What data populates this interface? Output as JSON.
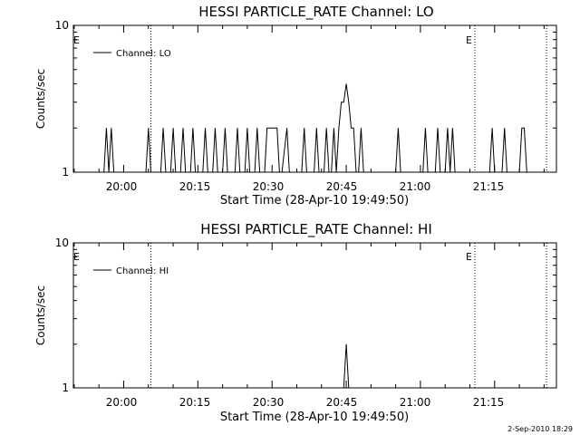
{
  "footer": {
    "date_stamp": "2-Sep-2010 18:29"
  },
  "chart_data": [
    {
      "type": "line",
      "title": "HESSI PARTICLE_RATE Channel: LO",
      "xlabel": "Start Time (28-Apr-10 19:49:50)",
      "ylabel": "Counts/sec",
      "y_scale": "log",
      "ylim": [
        1,
        10
      ],
      "yticks": [
        1,
        10
      ],
      "ytick_labels": [
        "1",
        "10"
      ],
      "xlim": [
        "19:49:50",
        "21:27:30"
      ],
      "xtick_labels": [
        "20:00",
        "20:15",
        "20:30",
        "20:45",
        "21:00",
        "21:15"
      ],
      "xtick_values": [
        "20:00",
        "20:15",
        "20:30",
        "20:45",
        "21:00",
        "21:15"
      ],
      "legend": {
        "entries": [
          "Channel: LO"
        ],
        "placement": "top-left"
      },
      "vlines": [
        {
          "x": "20:05:30",
          "label": ""
        },
        {
          "x": "21:11:00",
          "label": "E"
        },
        {
          "x": "21:25:30",
          "label": ""
        }
      ],
      "left_edge_label": "E",
      "series": [
        {
          "name": "Channel: LO",
          "x": [
            "19:56:00",
            "19:56:30",
            "19:57:00",
            "19:57:30",
            "19:58:00",
            "20:04:30",
            "20:05:00",
            "20:05:30",
            "20:07:30",
            "20:08:00",
            "20:08:30",
            "20:09:30",
            "20:10:00",
            "20:10:30",
            "20:11:30",
            "20:12:00",
            "20:12:30",
            "20:13:30",
            "20:14:00",
            "20:14:30",
            "20:16:00",
            "20:16:30",
            "20:17:00",
            "20:18:00",
            "20:18:30",
            "20:19:00",
            "20:20:00",
            "20:20:30",
            "20:21:00",
            "20:22:30",
            "20:23:00",
            "20:23:30",
            "20:24:30",
            "20:25:00",
            "20:25:30",
            "20:26:30",
            "20:27:00",
            "20:27:30",
            "20:28:30",
            "20:29:00",
            "20:30:00",
            "20:31:00",
            "20:31:30",
            "20:32:00",
            "20:33:00",
            "20:33:30",
            "20:34:00",
            "20:36:00",
            "20:36:30",
            "20:37:00",
            "20:38:30",
            "20:39:00",
            "20:39:30",
            "20:40:30",
            "20:41:00",
            "20:41:30",
            "20:42:00",
            "20:42:30",
            "20:43:00",
            "20:43:30",
            "20:44:00",
            "20:44:30",
            "20:45:00",
            "20:45:30",
            "20:46:00",
            "20:46:30",
            "20:47:00",
            "20:47:30",
            "20:48:00",
            "20:48:30",
            "20:49:00",
            "20:55:00",
            "20:55:30",
            "20:56:00",
            "21:00:30",
            "21:01:00",
            "21:01:30",
            "21:03:00",
            "21:03:30",
            "21:04:00",
            "21:05:00",
            "21:05:30",
            "21:06:00",
            "21:06:30",
            "21:07:00",
            "21:14:00",
            "21:14:30",
            "21:15:00",
            "21:16:30",
            "21:17:00",
            "21:17:30",
            "21:20:00",
            "21:20:30",
            "21:21:00",
            "21:21:30"
          ],
          "values": [
            1,
            2,
            1,
            2,
            1,
            1,
            2,
            1,
            1,
            2,
            1,
            1,
            2,
            1,
            1,
            2,
            1,
            1,
            2,
            1,
            1,
            2,
            1,
            1,
            2,
            1,
            1,
            2,
            1,
            1,
            2,
            1,
            1,
            2,
            1,
            1,
            2,
            1,
            1,
            2,
            2,
            2,
            1,
            1,
            2,
            1,
            1,
            1,
            2,
            1,
            1,
            2,
            1,
            1,
            2,
            1,
            1,
            2,
            1,
            2,
            3,
            3,
            4,
            3,
            2,
            2,
            1,
            1,
            2,
            1,
            1,
            1,
            2,
            1,
            1,
            2,
            1,
            1,
            2,
            1,
            1,
            2,
            1,
            2,
            1,
            1,
            2,
            1,
            1,
            2,
            1,
            1,
            2,
            2,
            1
          ]
        }
      ]
    },
    {
      "type": "line",
      "title": "HESSI PARTICLE_RATE Channel: HI",
      "xlabel": "Start Time (28-Apr-10 19:49:50)",
      "ylabel": "Counts/sec",
      "y_scale": "log",
      "ylim": [
        1,
        10
      ],
      "yticks": [
        1,
        10
      ],
      "ytick_labels": [
        "1",
        "10"
      ],
      "xlim": [
        "19:49:50",
        "21:27:30"
      ],
      "xtick_labels": [
        "20:00",
        "20:15",
        "20:30",
        "20:45",
        "21:00",
        "21:15"
      ],
      "xtick_values": [
        "20:00",
        "20:15",
        "20:30",
        "20:45",
        "21:00",
        "21:15"
      ],
      "legend": {
        "entries": [
          "Channel: HI"
        ],
        "placement": "top-left"
      },
      "vlines": [
        {
          "x": "20:05:30",
          "label": ""
        },
        {
          "x": "21:11:00",
          "label": "E"
        },
        {
          "x": "21:25:30",
          "label": ""
        }
      ],
      "left_edge_label": "E",
      "series": [
        {
          "name": "Channel: HI",
          "x": [
            "20:44:30",
            "20:45:00",
            "20:45:30"
          ],
          "values": [
            1,
            2,
            1
          ]
        }
      ]
    }
  ]
}
